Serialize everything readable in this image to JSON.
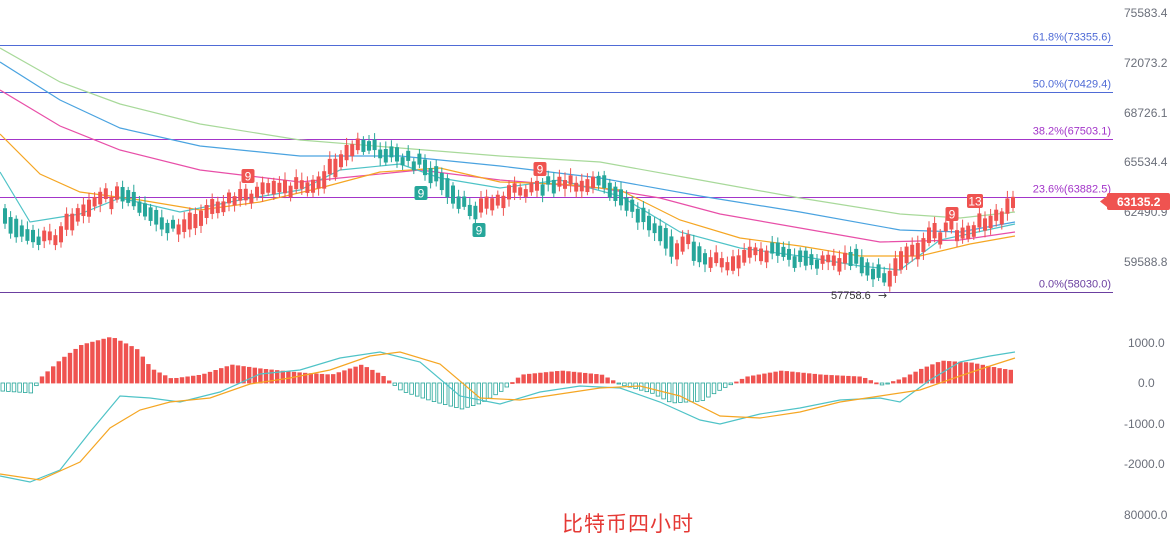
{
  "caption": "比特币四小时",
  "colors": {
    "up": "#ef5350",
    "down": "#26a69a",
    "fib_blue": "#4f6bd6",
    "fib_purple": "#a335c9",
    "fib_bottom": "#6b3fa0",
    "ma_teal": "#4fc3c7",
    "ma_orange": "#f5a623",
    "ma_pink": "#e84fa8",
    "ma_blue": "#4aa3e0",
    "ma_green": "#a8d99a",
    "macd_fast": "#4fc3c7",
    "macd_slow": "#f5a623",
    "caption": "#e53935",
    "price_tag": "#ef5350"
  },
  "chart_data": [
    {
      "type": "candlestick",
      "title": "",
      "price_axis_ticks": [
        "75583.4",
        "72073.2",
        "68726.1",
        "65534.4",
        "62490.9",
        "59588.8"
      ],
      "current_price": "63135.2",
      "fib_levels": [
        {
          "label": "61.8%(73355.6)",
          "value": 73355.6
        },
        {
          "label": "50.0%(70429.4)",
          "value": 70429.4
        },
        {
          "label": "38.2%(67503.1)",
          "value": 67503.1
        },
        {
          "label": "23.6%(63882.5)",
          "value": 63882.5
        },
        {
          "label": "0.0%(58030.0)",
          "value": 58030.0
        }
      ],
      "low_marker": "57758.6",
      "td_labels": [
        {
          "text": "9",
          "kind": "up"
        },
        {
          "text": "9",
          "kind": "down"
        },
        {
          "text": "9",
          "kind": "down"
        },
        {
          "text": "9",
          "kind": "up"
        },
        {
          "text": "9",
          "kind": "up"
        },
        {
          "text": "13",
          "kind": "up"
        }
      ]
    },
    {
      "type": "macd",
      "axis_ticks": [
        "1000.0",
        "0.0",
        "-1000.0",
        "-2000.0"
      ]
    }
  ],
  "extra_axis_label": "80000.0"
}
